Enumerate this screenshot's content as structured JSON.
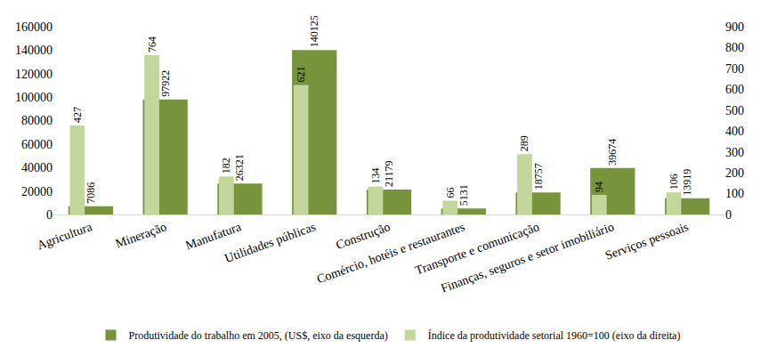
{
  "chart_data": {
    "type": "bar",
    "categories": [
      "Agricultura",
      "Mineração",
      "Manufatura",
      "Utilidades públicas",
      "Construção",
      "Comércio, hotéis e restaurantes",
      "Transporte e comunicação",
      "Finanças, seguros e setor imobiliário",
      "Serviços pessoais"
    ],
    "series": [
      {
        "name": "Produtividade do trabalho em 2005, (US$, eixo da esquerda)",
        "color": "#77933c",
        "axis": "y",
        "values": [
          7086,
          97922,
          26321,
          140125,
          21179,
          5131,
          18757,
          39674,
          13919
        ]
      },
      {
        "name": "Índice da produtividade setorial 1960=100 (eixo da direita)",
        "color": "#c3d69b",
        "axis": "y2",
        "values": [
          427,
          764,
          182,
          621,
          134,
          66,
          289,
          94,
          106
        ]
      }
    ],
    "ylim": [
      0,
      160000
    ],
    "yticks": [
      0,
      20000,
      40000,
      60000,
      80000,
      100000,
      120000,
      140000,
      160000
    ],
    "y2lim": [
      0,
      900
    ],
    "y2ticks": [
      0,
      100,
      200,
      300,
      400,
      500,
      600,
      700,
      800,
      900
    ],
    "data_labels": true,
    "grid": false,
    "legend": "bottom"
  }
}
